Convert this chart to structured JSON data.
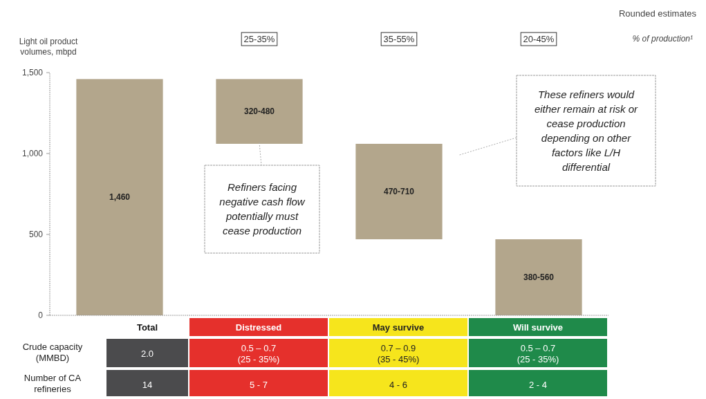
{
  "chart_data": {
    "type": "bar",
    "ylabel": "Light oil product volumes, mbpd",
    "categories": [
      "Total",
      "Distressed",
      "May survive",
      "Will survive"
    ],
    "values": [
      1460,
      400,
      590,
      470
    ],
    "base": [
      0,
      1060,
      470,
      0
    ],
    "value_labels": [
      "1,460",
      "320-480",
      "470-710",
      "380-560"
    ],
    "color": "#b3a68c",
    "ylim": [
      0,
      1500
    ],
    "yticks": [
      0,
      500,
      {
        "value": 1000,
        "label": "1,000"
      },
      {
        "value": 1500,
        "label": "1,500"
      }
    ],
    "grid": false,
    "annotations": [
      "Rounded estimates",
      "% of production¹",
      "Refiners facing negative cash flow potentially must cease production",
      "These refiners would either remain at risk or cease production depending on other factors like L/H differential",
      "Crude capacity (MMBD)",
      "Number of CA refineries",
      "25-35%",
      "35-55%",
      "20-45%",
      "2.0",
      "0.5 – 0.7 (25 - 35%)",
      "0.7 – 0.9 (35 - 45%)",
      "0.5 – 0.7 (25 - 35%)",
      "14",
      "5 - 7",
      "4 - 6",
      "2 - 4"
    ]
  }
}
